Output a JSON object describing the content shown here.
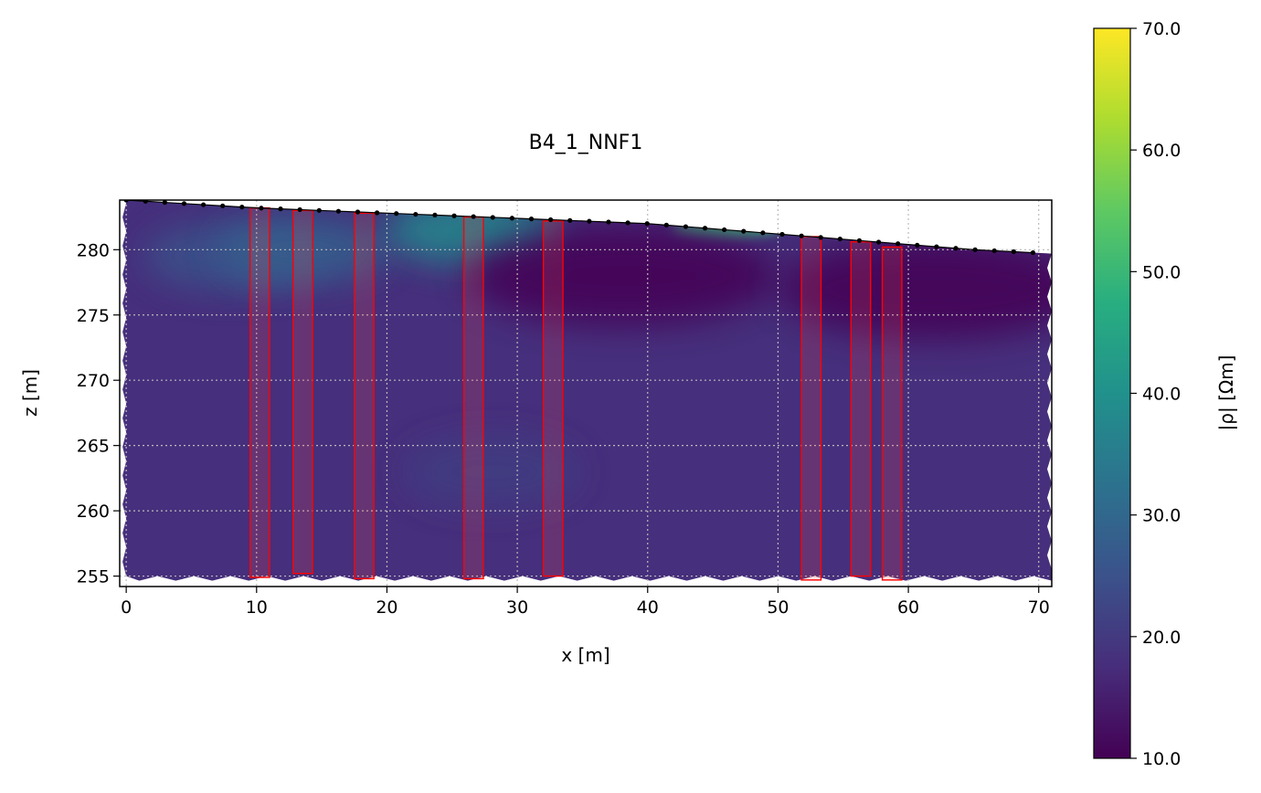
{
  "chart_data": {
    "type": "heatmap",
    "title": "B4_1_NNF1",
    "xlabel": "x [m]",
    "ylabel": "z [m]",
    "xlim": [
      -0.5,
      71
    ],
    "ylim": [
      254.2,
      283.8
    ],
    "x_ticks": [
      0,
      10,
      20,
      30,
      40,
      50,
      60,
      70
    ],
    "y_ticks": [
      255,
      260,
      265,
      270,
      275,
      280
    ],
    "grid": true,
    "colorbar": {
      "label": "|ρ| [Ωm]",
      "colormap": "viridis",
      "range": [
        10.0,
        70.0
      ],
      "ticks": [
        "10.0",
        "20.0",
        "30.0",
        "40.0",
        "50.0",
        "60.0",
        "70.0"
      ]
    },
    "surface_profile": {
      "x": [
        0,
        10,
        20,
        30,
        40,
        45,
        50,
        55,
        60,
        65,
        71
      ],
      "z": [
        283.8,
        283.2,
        282.8,
        282.4,
        282.0,
        281.6,
        281.2,
        280.8,
        280.4,
        280.0,
        279.7
      ]
    },
    "background_resistivity": 18,
    "anomalies": [
      {
        "x": 8,
        "z": 279.5,
        "value": 25
      },
      {
        "x": 13.5,
        "z": 280,
        "value": 28
      },
      {
        "x": 26.5,
        "z": 281.5,
        "value": 38
      },
      {
        "x": 46,
        "z": 281.6,
        "value": 50
      },
      {
        "x": 38,
        "z": 278,
        "value": 10
      },
      {
        "x": 62,
        "z": 277,
        "value": 10
      },
      {
        "x": 28,
        "z": 263,
        "value": 21
      }
    ],
    "boreholes": [
      {
        "x0": 9.5,
        "x1": 11.0,
        "z_top": 283.2,
        "z_bottom": 254.9
      },
      {
        "x0": 12.8,
        "x1": 14.3,
        "z_top": 283.0,
        "z_bottom": 255.2
      },
      {
        "x0": 17.5,
        "x1": 19.0,
        "z_top": 282.8,
        "z_bottom": 254.8
      },
      {
        "x0": 25.9,
        "x1": 27.4,
        "z_top": 282.5,
        "z_bottom": 254.8
      },
      {
        "x0": 32.0,
        "x1": 33.5,
        "z_top": 282.2,
        "z_bottom": 255.0
      },
      {
        "x0": 51.8,
        "x1": 53.3,
        "z_top": 281.0,
        "z_bottom": 254.7
      },
      {
        "x0": 55.6,
        "x1": 57.1,
        "z_top": 280.6,
        "z_bottom": 255.0
      },
      {
        "x0": 58.0,
        "x1": 59.5,
        "z_top": 280.2,
        "z_bottom": 254.7
      }
    ],
    "colors": {
      "borehole_outline": "#ff0000",
      "electrode": "#000000",
      "grid": "#bbbbbb"
    }
  }
}
